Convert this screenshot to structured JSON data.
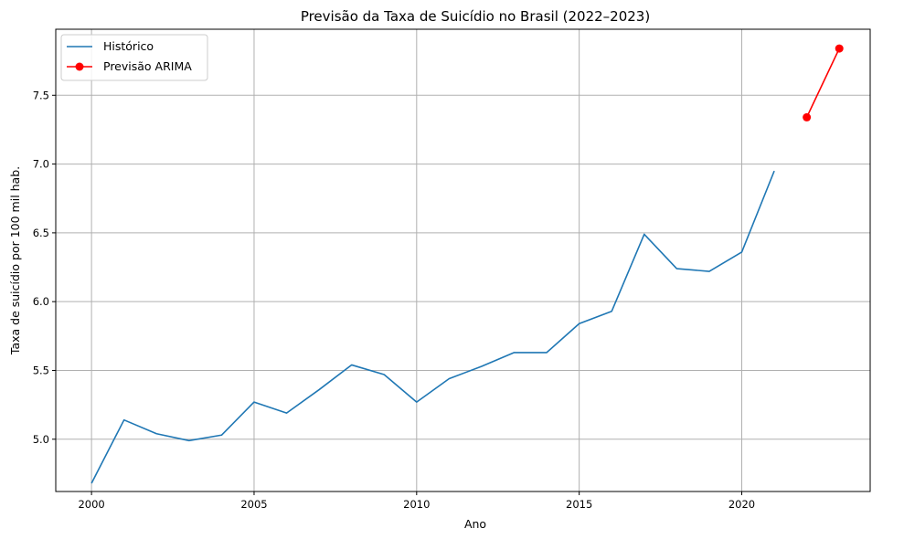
{
  "chart_data": {
    "type": "line",
    "title": "Previsão da Taxa de Suicídio no Brasil (2022–2023)",
    "xlabel": "Ano",
    "ylabel": "Taxa de suicídio por 100 mil hab.",
    "xlim": [
      1998.9,
      2023.95
    ],
    "ylim": [
      4.62,
      7.98
    ],
    "xticks": [
      2000,
      2005,
      2010,
      2015,
      2020
    ],
    "yticks": [
      5.0,
      5.5,
      6.0,
      6.5,
      7.0,
      7.5
    ],
    "xtick_labels": [
      "2000",
      "2005",
      "2010",
      "2015",
      "2020"
    ],
    "ytick_labels": [
      "5.0",
      "5.5",
      "6.0",
      "6.5",
      "7.0",
      "7.5"
    ],
    "grid": true,
    "legend_position": "top-left",
    "series": [
      {
        "name": "Histórico",
        "color": "#1f77b4",
        "marker": "none",
        "x": [
          2000,
          2001,
          2002,
          2003,
          2004,
          2005,
          2006,
          2007,
          2008,
          2009,
          2010,
          2011,
          2012,
          2013,
          2014,
          2015,
          2016,
          2017,
          2018,
          2019,
          2020,
          2021
        ],
        "y": [
          4.68,
          5.14,
          5.04,
          4.99,
          5.03,
          5.27,
          5.19,
          5.36,
          5.54,
          5.47,
          5.27,
          5.44,
          5.53,
          5.63,
          5.63,
          5.84,
          5.93,
          6.49,
          6.24,
          6.22,
          6.36,
          6.95
        ]
      },
      {
        "name": "Previsão ARIMA",
        "color": "#ff0000",
        "marker": "circle",
        "x": [
          2022,
          2023
        ],
        "y": [
          7.34,
          7.84
        ]
      }
    ]
  }
}
